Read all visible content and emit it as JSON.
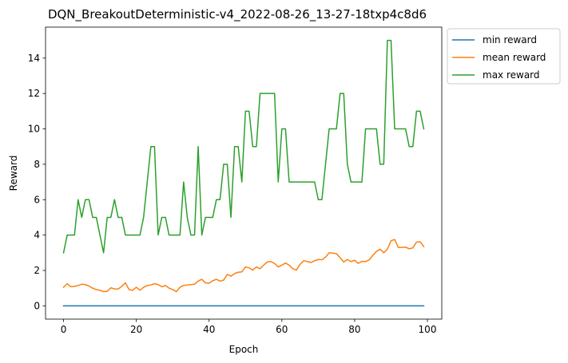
{
  "chart_data": {
    "type": "line",
    "title": "DQN_BreakoutDeterministic-v4_2022-08-26_13-27-18txp4c8d6",
    "xlabel": "Epoch",
    "ylabel": "Reward",
    "xlim": [
      -4.95,
      103.95
    ],
    "ylim": [
      -0.75,
      15.75
    ],
    "xticks": [
      0,
      20,
      40,
      60,
      80,
      100
    ],
    "yticks": [
      0,
      2,
      4,
      6,
      8,
      10,
      12,
      14
    ],
    "grid": false,
    "legend_position": "outside-top-right",
    "x": [
      0,
      1,
      2,
      3,
      4,
      5,
      6,
      7,
      8,
      9,
      10,
      11,
      12,
      13,
      14,
      15,
      16,
      17,
      18,
      19,
      20,
      21,
      22,
      23,
      24,
      25,
      26,
      27,
      28,
      29,
      30,
      31,
      32,
      33,
      34,
      35,
      36,
      37,
      38,
      39,
      40,
      41,
      42,
      43,
      44,
      45,
      46,
      47,
      48,
      49,
      50,
      51,
      52,
      53,
      54,
      55,
      56,
      57,
      58,
      59,
      60,
      61,
      62,
      63,
      64,
      65,
      66,
      67,
      68,
      69,
      70,
      71,
      72,
      73,
      74,
      75,
      76,
      77,
      78,
      79,
      80,
      81,
      82,
      83,
      84,
      85,
      86,
      87,
      88,
      89,
      90,
      91,
      92,
      93,
      94,
      95,
      96,
      97,
      98,
      99
    ],
    "series": [
      {
        "name": "min reward",
        "color": "#1f77b4",
        "values": [
          0,
          0,
          0,
          0,
          0,
          0,
          0,
          0,
          0,
          0,
          0,
          0,
          0,
          0,
          0,
          0,
          0,
          0,
          0,
          0,
          0,
          0,
          0,
          0,
          0,
          0,
          0,
          0,
          0,
          0,
          0,
          0,
          0,
          0,
          0,
          0,
          0,
          0,
          0,
          0,
          0,
          0,
          0,
          0,
          0,
          0,
          0,
          0,
          0,
          0,
          0,
          0,
          0,
          0,
          0,
          0,
          0,
          0,
          0,
          0,
          0,
          0,
          0,
          0,
          0,
          0,
          0,
          0,
          0,
          0,
          0,
          0,
          0,
          0,
          0,
          0,
          0,
          0,
          0,
          0,
          0,
          0,
          0,
          0,
          0,
          0,
          0,
          0,
          0,
          0,
          0,
          0,
          0,
          0,
          0,
          0,
          0,
          0,
          0,
          0
        ]
      },
      {
        "name": "mean reward",
        "color": "#ff7f0e",
        "values": [
          1.05,
          1.25,
          1.08,
          1.1,
          1.15,
          1.22,
          1.2,
          1.12,
          1.0,
          0.92,
          0.88,
          0.8,
          0.82,
          1.02,
          0.96,
          0.95,
          1.1,
          1.3,
          0.92,
          0.88,
          1.05,
          0.88,
          1.05,
          1.15,
          1.18,
          1.25,
          1.2,
          1.08,
          1.15,
          1.0,
          0.92,
          0.8,
          1.05,
          1.15,
          1.18,
          1.2,
          1.22,
          1.4,
          1.5,
          1.3,
          1.28,
          1.42,
          1.5,
          1.4,
          1.45,
          1.78,
          1.68,
          1.82,
          1.9,
          1.92,
          2.2,
          2.15,
          2.02,
          2.2,
          2.1,
          2.3,
          2.48,
          2.5,
          2.4,
          2.2,
          2.3,
          2.42,
          2.3,
          2.1,
          2.02,
          2.35,
          2.55,
          2.5,
          2.45,
          2.55,
          2.62,
          2.6,
          2.75,
          3.0,
          2.98,
          2.95,
          2.72,
          2.48,
          2.62,
          2.5,
          2.58,
          2.4,
          2.52,
          2.5,
          2.6,
          2.85,
          3.08,
          3.2,
          3.0,
          3.2,
          3.68,
          3.75,
          3.3,
          3.3,
          3.32,
          3.22,
          3.28,
          3.6,
          3.62,
          3.35
        ]
      },
      {
        "name": "max reward",
        "color": "#2ca02c",
        "values": [
          3,
          4,
          4,
          4,
          6,
          5,
          6,
          6,
          5,
          5,
          4,
          3,
          5,
          5,
          6,
          5,
          5,
          4,
          4,
          4,
          4,
          4,
          5,
          7,
          9,
          9,
          4,
          5,
          5,
          4,
          4,
          4,
          4,
          7,
          5,
          4,
          4,
          9,
          4,
          5,
          5,
          5,
          6,
          6,
          8,
          8,
          5,
          9,
          9,
          7,
          11,
          11,
          9,
          9,
          12,
          12,
          12,
          12,
          12,
          7,
          10,
          10,
          7,
          7,
          7,
          7,
          7,
          7,
          7,
          7,
          6,
          6,
          8,
          10,
          10,
          10,
          12,
          12,
          8,
          7,
          7,
          7,
          7,
          10,
          10,
          10,
          10,
          8,
          8,
          15,
          15,
          10,
          10,
          10,
          10,
          9,
          9,
          11,
          11,
          10
        ]
      }
    ]
  }
}
